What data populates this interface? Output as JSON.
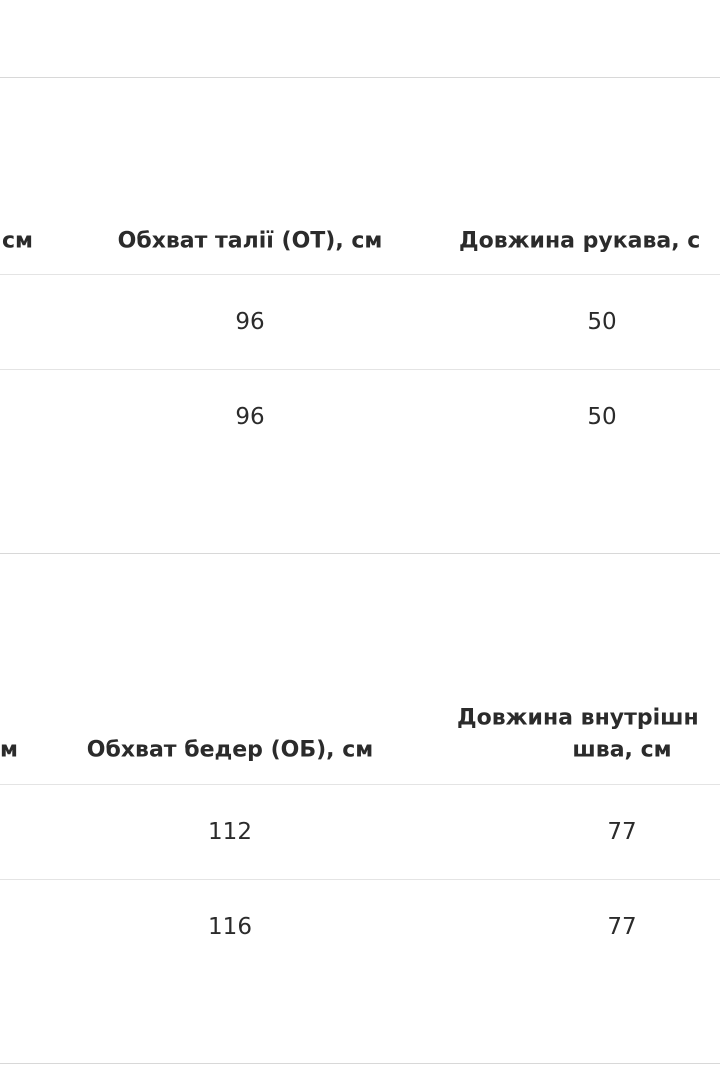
{
  "tables": [
    {
      "header": [
        "см",
        "Обхват талії (ОТ), см",
        "Довжина рукава, с"
      ],
      "rows": [
        [
          "96",
          "50"
        ],
        [
          "96",
          "50"
        ]
      ]
    },
    {
      "header": [
        "м",
        "Обхват бедер (ОБ), см",
        "Довжина внутрішн",
        "шва, см"
      ],
      "rows": [
        [
          "112",
          "77"
        ],
        [
          "116",
          "77"
        ]
      ]
    }
  ]
}
